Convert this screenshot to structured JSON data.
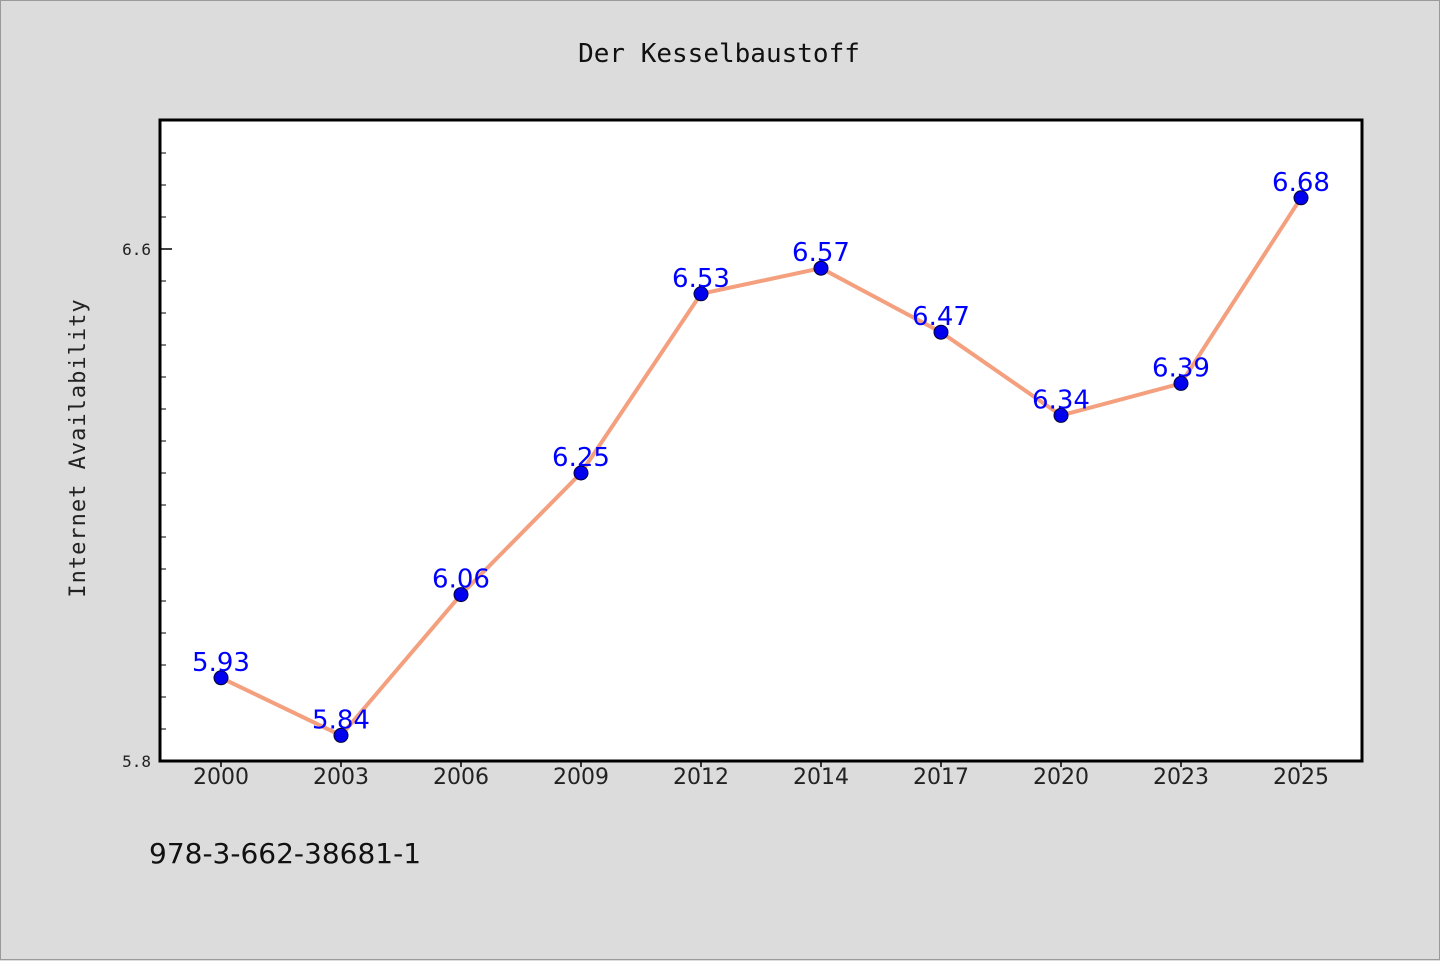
{
  "chart_data": {
    "type": "line",
    "title": "Der Kesselbaustoff",
    "xlabel": "",
    "ylabel": "Internet Availability",
    "categories": [
      "2000",
      "2003",
      "2006",
      "2009",
      "2012",
      "2014",
      "2017",
      "2020",
      "2023",
      "2025"
    ],
    "series": [
      {
        "values": [
          5.93,
          5.84,
          6.06,
          6.25,
          6.53,
          6.57,
          6.47,
          6.34,
          6.39,
          6.68
        ]
      }
    ],
    "y_ticks": [
      "5.8",
      "6.6"
    ],
    "ylim": [
      5.8,
      6.8
    ],
    "grid": false,
    "legend": "none",
    "colors": {
      "line": "#f4a07e",
      "marker": "#0000ee",
      "marker_edge": "#000033",
      "labels": "#0000ff",
      "background": "#dcdcdc",
      "plot_background": "#ffffff"
    }
  },
  "footer": {
    "code": "978-3-662-38681-1"
  }
}
